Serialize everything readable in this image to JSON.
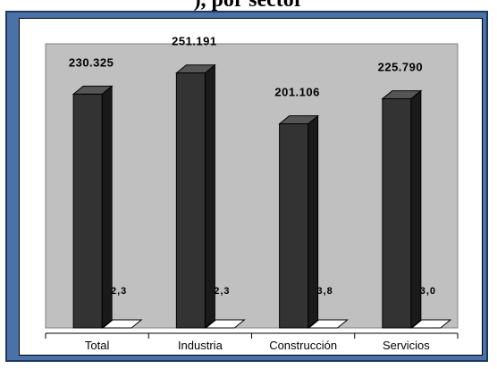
{
  "header": {
    "partial_title": "), por sector"
  },
  "colors": {
    "frame": "#4a72a8",
    "plot_background": "#c0c0c0",
    "bar_front": "#333333",
    "bar_side": "#1a1a1a",
    "bar_top": "#555555"
  },
  "chart_data": {
    "type": "bar",
    "categories": [
      "Total",
      "Industria",
      "Construcción",
      "Servicios"
    ],
    "series": [
      {
        "values": [
          230325,
          251191,
          201106,
          225790
        ],
        "labels": [
          "230.325",
          "251.191",
          "201.106",
          "225.790"
        ]
      },
      {
        "values": [
          2.3,
          2.3,
          3.8,
          3.0
        ],
        "labels": [
          "2,3",
          "2,3",
          "3,8",
          "3,0"
        ]
      }
    ],
    "title": "",
    "xlabel": "",
    "ylabel": "",
    "ylim": [
      0,
      280000
    ],
    "grid": false,
    "legend": "none",
    "style": "3d-columns"
  }
}
